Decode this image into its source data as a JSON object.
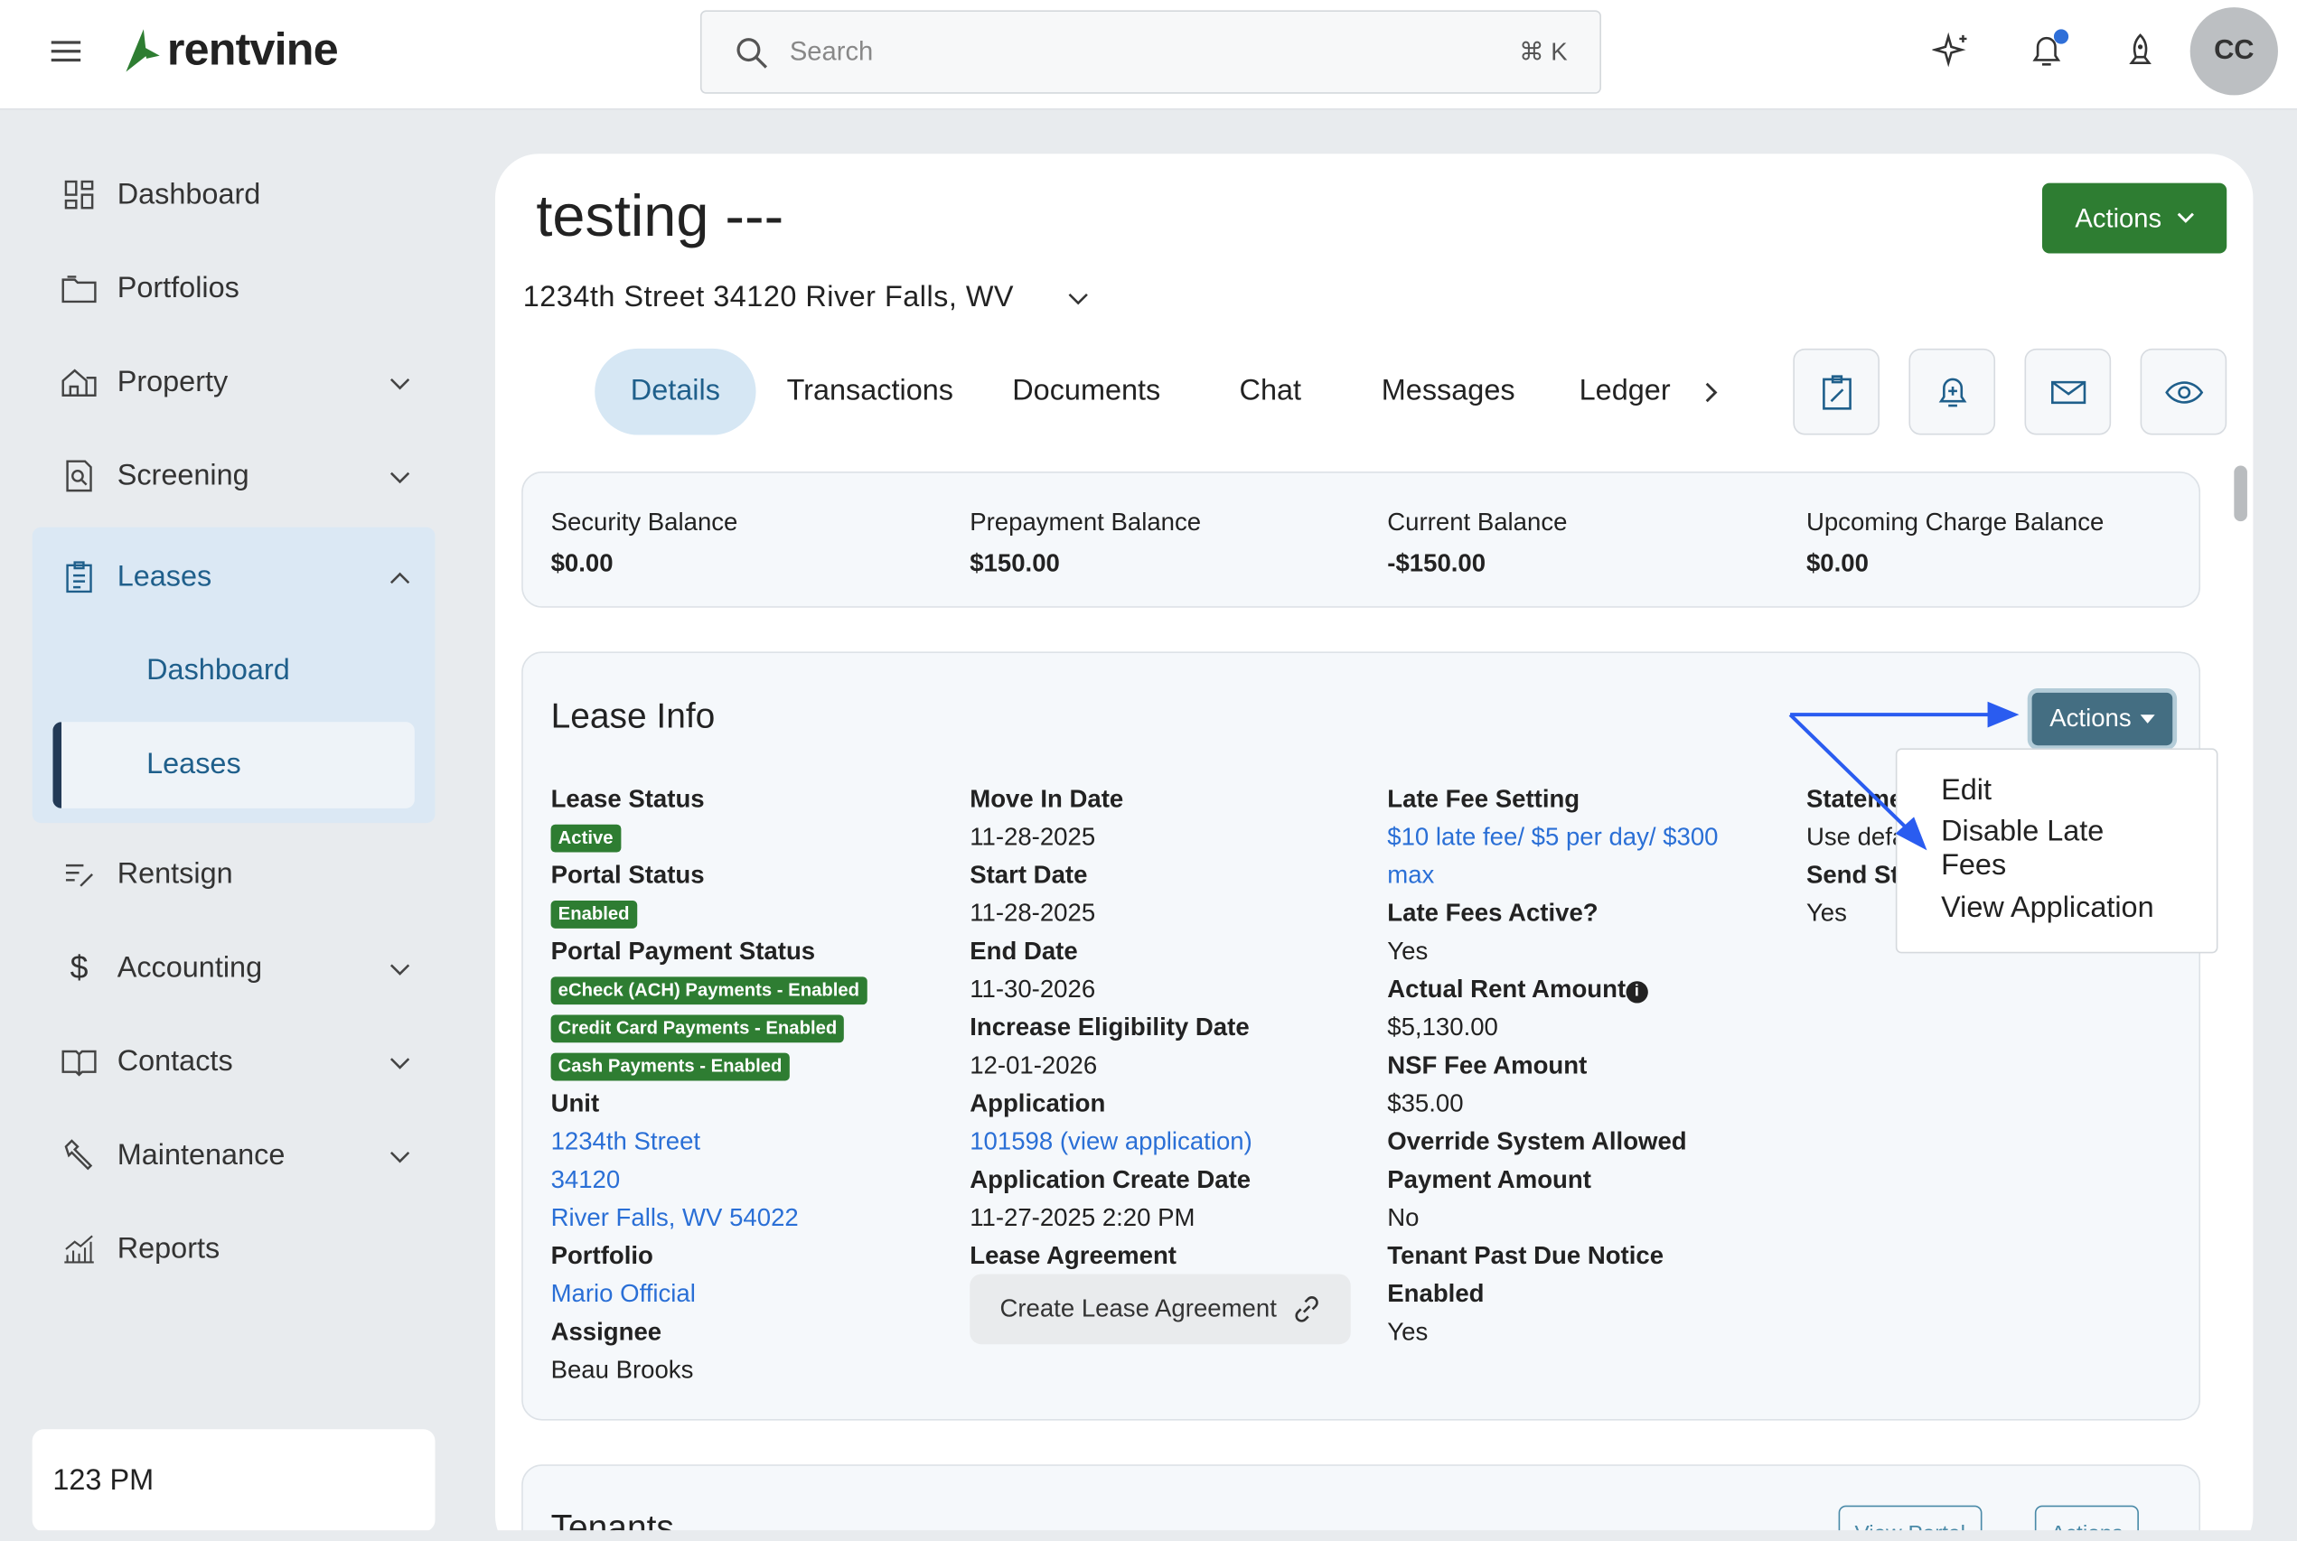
{
  "header": {
    "brand": "rentvine",
    "search_placeholder": "Search",
    "search_shortcut": "⌘ K",
    "avatar_initials": "CC",
    "accent": "#2e7d32"
  },
  "sidebar": {
    "items": [
      {
        "label": "Dashboard",
        "icon": "grid-icon"
      },
      {
        "label": "Portfolios",
        "icon": "folder-icon"
      },
      {
        "label": "Property",
        "icon": "house-icon"
      },
      {
        "label": "Screening",
        "icon": "document-search-icon"
      },
      {
        "label": "Leases",
        "icon": "clipboard-icon"
      },
      {
        "label": "Rentsign",
        "icon": "sign-icon"
      },
      {
        "label": "Accounting",
        "icon": "dollar-icon"
      },
      {
        "label": "Contacts",
        "icon": "book-icon"
      },
      {
        "label": "Maintenance",
        "icon": "wrench-icon"
      },
      {
        "label": "Reports",
        "icon": "chart-icon"
      }
    ],
    "leases_sub": [
      "Dashboard",
      "Leases"
    ],
    "footer": "123 PM"
  },
  "page": {
    "title": "testing ---",
    "address": "1234th Street 34120 River Falls, WV",
    "actions": "Actions",
    "tabs": [
      "Details",
      "Transactions",
      "Documents",
      "Chat",
      "Messages",
      "Ledger"
    ]
  },
  "balances": [
    {
      "label": "Security Balance",
      "value": "$0.00"
    },
    {
      "label": "Prepayment Balance",
      "value": "$150.00"
    },
    {
      "label": "Current Balance",
      "value": "-$150.00"
    },
    {
      "label": "Upcoming Charge Balance",
      "value": "$0.00"
    }
  ],
  "lease_info": {
    "title": "Lease Info",
    "actions": "Actions",
    "menu": [
      "Edit",
      "Disable Late Fees",
      "View Application"
    ],
    "col1": {
      "lease_status": "Lease Status",
      "active": "Active",
      "portal_status": "Portal Status",
      "enabled": "Enabled",
      "portal_payment_status": "Portal Payment Status",
      "payments": [
        "eCheck (ACH) Payments - Enabled",
        "Credit Card Payments - Enabled",
        "Cash Payments - Enabled"
      ],
      "unit": "Unit",
      "unit_lines": [
        "1234th Street",
        "34120",
        "River Falls, WV 54022"
      ],
      "portfolio": "Portfolio",
      "portfolio_val": "Mario Official",
      "assignee": "Assignee",
      "assignee_val": "Beau Brooks"
    },
    "col2": {
      "move_in": "Move In Date",
      "move_in_val": "11-28-2025",
      "start": "Start Date",
      "start_val": "11-28-2025",
      "end": "End Date",
      "end_val": "11-30-2026",
      "incr": "Increase Eligibility Date",
      "incr_val": "12-01-2026",
      "app": "Application",
      "app_val": "101598 (view application)",
      "app_create": "Application Create Date",
      "app_create_val": "11-27-2025 2:20 PM",
      "agreement": "Lease Agreement",
      "create_btn": "Create Lease Agreement"
    },
    "col3": {
      "late_fee": "Late Fee Setting",
      "late_fee_val": "$10 late fee/ $5 per day/ $300",
      "late_fee_val2": "max",
      "late_active": "Late Fees Active?",
      "late_active_val": "Yes",
      "rent": "Actual Rent Amount",
      "rent_val": "$5,130.00",
      "nsf": "NSF Fee Amount",
      "nsf_val": "$35.00",
      "override": "Override System Allowed",
      "override2": "Payment Amount",
      "override_val": "No",
      "notice": "Tenant Past Due Notice",
      "notice2": "Enabled",
      "notice_val": "Yes"
    },
    "col4": {
      "statement": "Stateme",
      "statement_val": "Use defa",
      "send": "Send St",
      "send_val": "Yes"
    }
  },
  "tenants": {
    "title": "Tenants",
    "view_portal": "View Portal",
    "actions": "Actions"
  }
}
